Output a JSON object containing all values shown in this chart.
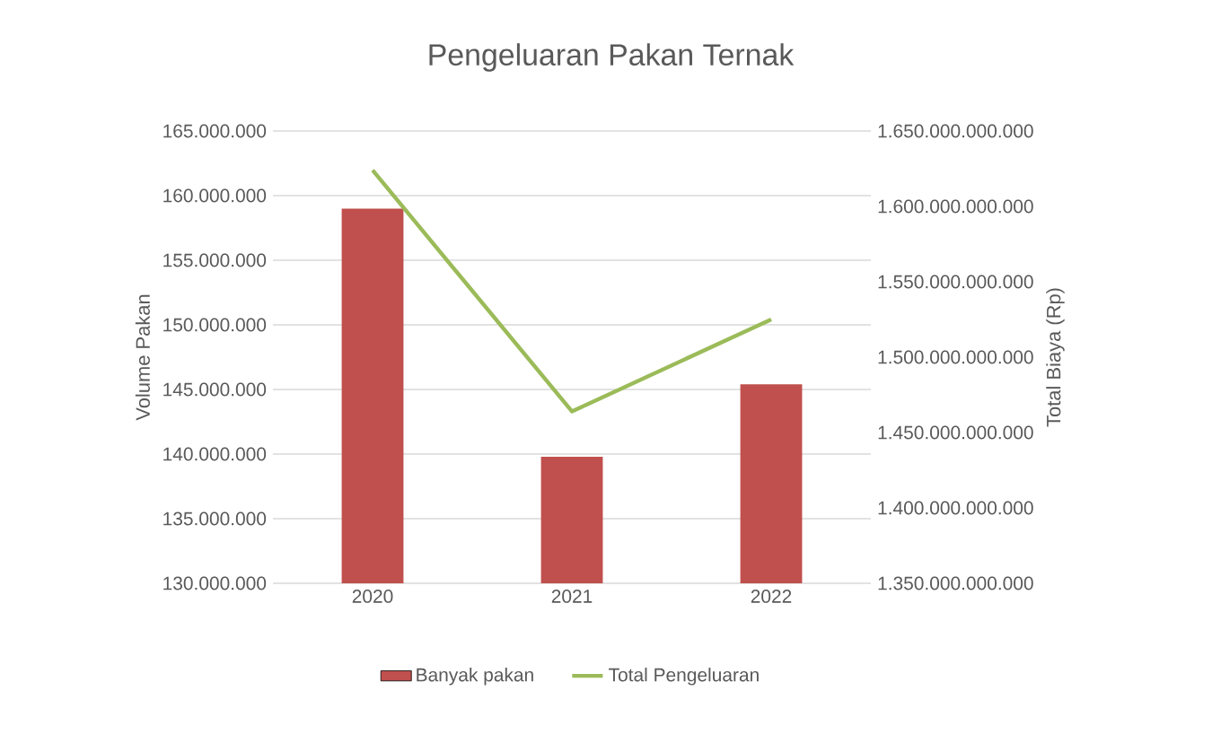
{
  "chart_data": {
    "type": "bar",
    "title": "Pengeluaran Pakan Ternak",
    "categories": [
      "2020",
      "2021",
      "2022"
    ],
    "ylabel": "Volume Pakan",
    "y2label": "Total Biaya (Rp)",
    "series": [
      {
        "name": "Banyak pakan",
        "color": "#c0504d",
        "values": [
          159000000,
          139800000,
          145400000
        ]
      },
      {
        "name": "Total Pengeluaran",
        "type": "line",
        "axis": "y2",
        "color": "#9bbb59",
        "values": [
          1624000000000,
          1464000000000,
          1525000000000
        ]
      }
    ],
    "ylim": [
      130000000,
      165000000
    ],
    "yticks": [
      {
        "value": 130000000,
        "label": "130.000.000"
      },
      {
        "value": 135000000,
        "label": "135.000.000"
      },
      {
        "value": 140000000,
        "label": "140.000.000"
      },
      {
        "value": 145000000,
        "label": "145.000.000"
      },
      {
        "value": 150000000,
        "label": "150.000.000"
      },
      {
        "value": 155000000,
        "label": "155.000.000"
      },
      {
        "value": 160000000,
        "label": "160.000.000"
      },
      {
        "value": 165000000,
        "label": "165.000.000"
      }
    ],
    "y2lim": [
      1350000000000,
      1650000000000
    ],
    "y2ticks": [
      {
        "value": 1350000000000,
        "label": "1.350.000.000.000"
      },
      {
        "value": 1400000000000,
        "label": "1.400.000.000.000"
      },
      {
        "value": 1450000000000,
        "label": "1.450.000.000.000"
      },
      {
        "value": 1500000000000,
        "label": "1.500.000.000.000"
      },
      {
        "value": 1550000000000,
        "label": "1.550.000.000.000"
      },
      {
        "value": 1600000000000,
        "label": "1.600.000.000.000"
      },
      {
        "value": 1650000000000,
        "label": "1.650.000.000.000"
      }
    ],
    "grid": "y",
    "legend": "bottom",
    "marker": "none"
  }
}
